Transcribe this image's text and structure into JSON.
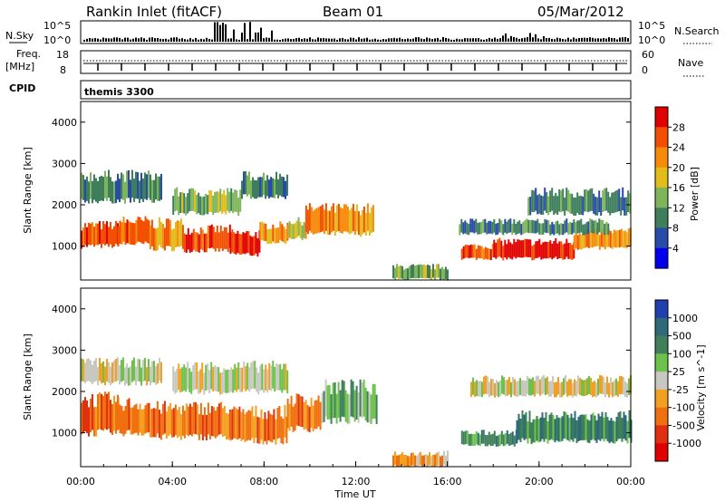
{
  "header": {
    "title": "Rankin Inlet (fitACF)",
    "beam": "Beam 01",
    "date": "05/Mar/2012"
  },
  "nsky_panel": {
    "left_label": "N.Sky",
    "right_label": "N.Search",
    "left_ticks": [
      "10^5",
      "10^0"
    ],
    "right_ticks": [
      "10^5",
      "10^0"
    ]
  },
  "freq_panel": {
    "left_label": "Freq.",
    "left_unit": "[MHz]",
    "right_label": "Nave",
    "left_ticks": [
      "18",
      "8"
    ],
    "right_ticks": [
      "60",
      "0"
    ]
  },
  "cpid": {
    "label": "CPID",
    "value": "themis 3300"
  },
  "power_colorbar": {
    "label": "Power [dB]",
    "ticks": [
      "28",
      "24",
      "20",
      "16",
      "12",
      "8",
      "4"
    ],
    "colors": [
      "#e00000",
      "#f25000",
      "#f88a0a",
      "#e2bc1a",
      "#7fb55a",
      "#3e7e5c",
      "#284aa8",
      "#0000ee"
    ]
  },
  "velocity_colorbar": {
    "label": "Velocity [m s^-1]",
    "ticks": [
      "1000",
      "500",
      "100",
      "25",
      "-25",
      "-100",
      "-500",
      "-1000"
    ],
    "colors": [
      "#2040b0",
      "#2f6a7a",
      "#3f7f5a",
      "#6cc24a",
      "#c8c8c0",
      "#f3a020",
      "#f07010",
      "#e03010",
      "#e00000"
    ]
  },
  "chart_data": [
    {
      "type": "heatmap",
      "name": "power",
      "ylabel": "Slant Range [km]",
      "yticks": [
        1000,
        2000,
        3000,
        4000
      ],
      "ylim": [
        180,
        4500
      ],
      "xlim": [
        0,
        24
      ],
      "grid": false,
      "bands": [
        {
          "start": 0.0,
          "end": 1.6,
          "lo": 1000,
          "hi": 1500,
          "level": 6
        },
        {
          "start": 1.6,
          "end": 3.0,
          "lo": 1050,
          "hi": 1600,
          "level": 6
        },
        {
          "start": 3.0,
          "end": 4.5,
          "lo": 950,
          "hi": 1550,
          "level": 5
        },
        {
          "start": 4.5,
          "end": 6.5,
          "lo": 900,
          "hi": 1400,
          "level": 6
        },
        {
          "start": 6.5,
          "end": 7.8,
          "lo": 800,
          "hi": 1300,
          "level": 7
        },
        {
          "start": 7.8,
          "end": 9.0,
          "lo": 1100,
          "hi": 1500,
          "level": 5
        },
        {
          "start": 9.0,
          "end": 9.8,
          "lo": 1200,
          "hi": 1600,
          "level": 4
        },
        {
          "start": 9.8,
          "end": 12.8,
          "lo": 1300,
          "hi": 1900,
          "level": 5
        },
        {
          "start": 13.6,
          "end": 16.0,
          "lo": 200,
          "hi": 500,
          "level": 3
        },
        {
          "start": 16.6,
          "end": 18.0,
          "lo": 700,
          "hi": 1000,
          "level": 6
        },
        {
          "start": 18.0,
          "end": 21.5,
          "lo": 700,
          "hi": 1100,
          "level": 7
        },
        {
          "start": 21.5,
          "end": 24.0,
          "lo": 950,
          "hi": 1350,
          "level": 5
        },
        {
          "start": 0.0,
          "end": 3.5,
          "lo": 2100,
          "hi": 2700,
          "level": 2
        },
        {
          "start": 4.0,
          "end": 7.0,
          "lo": 1800,
          "hi": 2300,
          "level": 3
        },
        {
          "start": 7.0,
          "end": 9.0,
          "lo": 2200,
          "hi": 2700,
          "level": 2
        },
        {
          "start": 19.5,
          "end": 24.0,
          "lo": 1800,
          "hi": 2300,
          "level": 2
        },
        {
          "start": 16.5,
          "end": 23.0,
          "lo": 1300,
          "hi": 1600,
          "level": 2
        }
      ]
    },
    {
      "type": "heatmap",
      "name": "velocity",
      "xlabel": "Time UT",
      "ylabel": "Slant Range [km]",
      "yticks": [
        1000,
        2000,
        3000,
        4000
      ],
      "ylim": [
        180,
        4500
      ],
      "xlim": [
        0,
        24
      ],
      "xticks": [
        "00:00",
        "04:00",
        "08:00",
        "12:00",
        "16:00",
        "20:00",
        "00:00"
      ],
      "grid": false,
      "bands": [
        {
          "start": 0.0,
          "end": 1.6,
          "lo": 1000,
          "hi": 1800,
          "level": 2
        },
        {
          "start": 1.6,
          "end": 3.0,
          "lo": 1000,
          "hi": 1700,
          "level": 2
        },
        {
          "start": 3.0,
          "end": 6.5,
          "lo": 900,
          "hi": 1600,
          "level": 2
        },
        {
          "start": 6.5,
          "end": 9.0,
          "lo": 800,
          "hi": 1500,
          "level": 2
        },
        {
          "start": 9.0,
          "end": 10.5,
          "lo": 1100,
          "hi": 1800,
          "level": 2
        },
        {
          "start": 10.5,
          "end": 12.9,
          "lo": 1300,
          "hi": 2100,
          "level": 5
        },
        {
          "start": 13.6,
          "end": 16.0,
          "lo": 200,
          "hi": 500,
          "level": 3
        },
        {
          "start": 16.6,
          "end": 19.0,
          "lo": 700,
          "hi": 1000,
          "level": 6
        },
        {
          "start": 19.0,
          "end": 24.0,
          "lo": 800,
          "hi": 1400,
          "level": 6
        },
        {
          "start": 0.0,
          "end": 3.5,
          "lo": 2200,
          "hi": 2700,
          "level": 4
        },
        {
          "start": 4.0,
          "end": 9.0,
          "lo": 2000,
          "hi": 2600,
          "level": 4
        },
        {
          "start": 17.0,
          "end": 24.0,
          "lo": 1900,
          "hi": 2300,
          "level": 4
        }
      ]
    }
  ]
}
